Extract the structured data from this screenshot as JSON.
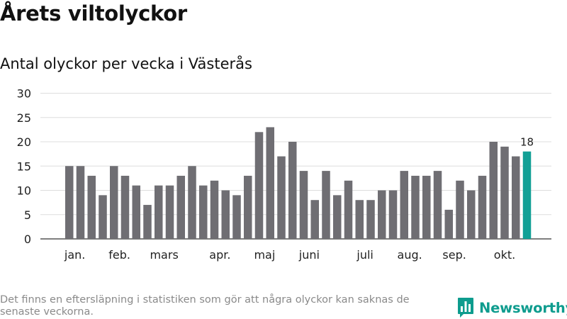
{
  "title": "Årets viltolyckor",
  "subtitle": "Antal olyckor per vecka i Västerås",
  "footnote": "Det finns en eftersläpning i statistiken som gör att några olyckor kan saknas de senaste veckorna.",
  "brand": {
    "name": "Newsworthy",
    "icon": "bar-chart-logo-icon"
  },
  "colors": {
    "bar": "#6f6e73",
    "highlight": "#12a096",
    "grid": "#dddddd",
    "text": "#222222"
  },
  "chart_data": {
    "type": "bar",
    "title": "Årets viltolyckor",
    "subtitle": "Antal olyckor per vecka i Västerås",
    "xlabel": "",
    "ylabel": "",
    "ylim": [
      0,
      30
    ],
    "yticks": [
      0,
      5,
      10,
      15,
      20,
      25,
      30
    ],
    "grid": true,
    "legend": "none",
    "values": [
      15,
      15,
      13,
      9,
      15,
      13,
      11,
      7,
      11,
      11,
      13,
      15,
      11,
      12,
      10,
      9,
      13,
      22,
      23,
      17,
      20,
      14,
      8,
      14,
      9,
      12,
      8,
      8,
      10,
      10,
      14,
      13,
      13,
      14,
      6,
      12,
      10,
      13,
      20,
      19,
      17,
      18
    ],
    "highlight_index": 41,
    "highlight_label": "18",
    "month_labels": [
      {
        "label": "jan.",
        "bar": 0.5
      },
      {
        "label": "feb.",
        "bar": 4.5
      },
      {
        "label": "mars",
        "bar": 8.5
      },
      {
        "label": "apr.",
        "bar": 13.5
      },
      {
        "label": "maj",
        "bar": 17.5
      },
      {
        "label": "juni",
        "bar": 21.5
      },
      {
        "label": "juli",
        "bar": 26.5
      },
      {
        "label": "aug.",
        "bar": 30.5
      },
      {
        "label": "sep.",
        "bar": 34.5
      },
      {
        "label": "okt.",
        "bar": 39
      }
    ]
  }
}
